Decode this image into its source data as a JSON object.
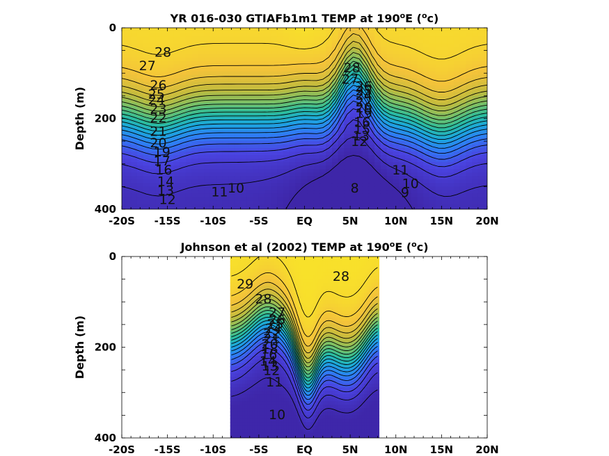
{
  "chart_data": [
    {
      "type": "heatmap",
      "title_pre": "YR 016-030 GTIAFb1m1 TEMP at 190",
      "title_sup1": "o",
      "title_mid": "E (",
      "title_sup2": "o",
      "title_post": "c)",
      "ylabel": "Depth (m)",
      "xlim": [
        -20,
        20
      ],
      "ylim": [
        0,
        400
      ],
      "y_reversed": true,
      "x_ticks": [
        -20,
        -15,
        -10,
        -5,
        0,
        5,
        10,
        15,
        20
      ],
      "x_tick_labels": [
        "-20S",
        "-15S",
        "-10S",
        "-5S",
        "EQ",
        "5N",
        "10N",
        "15N",
        "20N"
      ],
      "y_ticks": [
        0,
        200,
        400
      ],
      "y_tick_labels": [
        "0",
        "200",
        "400"
      ],
      "data_xrange": [
        -20,
        20
      ],
      "colormap": [
        "#3e26a8",
        "#4a43e0",
        "#2f7cf5",
        "#1ba7dc",
        "#2cbc9b",
        "#78bf66",
        "#c2bb3d",
        "#f4c33a",
        "#f9e926"
      ],
      "temp_range": [
        8,
        29.5
      ],
      "contour_levels": [
        8,
        9,
        10,
        11,
        12,
        13,
        14,
        15,
        16,
        17,
        18,
        19,
        20,
        21,
        22,
        23,
        24,
        25,
        26,
        27,
        28
      ],
      "contour_labels": [
        {
          "text": "28",
          "x": -15.5,
          "y": 55
        },
        {
          "text": "27",
          "x": -17.2,
          "y": 85
        },
        {
          "text": "26",
          "x": -16.0,
          "y": 128
        },
        {
          "text": "25",
          "x": -16.2,
          "y": 148
        },
        {
          "text": "24",
          "x": -16.2,
          "y": 160
        },
        {
          "text": "23",
          "x": -16.0,
          "y": 180
        },
        {
          "text": "22",
          "x": -16.0,
          "y": 200
        },
        {
          "text": "21",
          "x": -16.0,
          "y": 230
        },
        {
          "text": "20",
          "x": -16.0,
          "y": 255
        },
        {
          "text": "19",
          "x": -15.6,
          "y": 275
        },
        {
          "text": "17",
          "x": -15.6,
          "y": 295
        },
        {
          "text": "16",
          "x": -15.4,
          "y": 315
        },
        {
          "text": "14",
          "x": -15.2,
          "y": 340
        },
        {
          "text": "13",
          "x": -15.2,
          "y": 360
        },
        {
          "text": "12",
          "x": -15.0,
          "y": 380
        },
        {
          "text": "28",
          "x": 5.2,
          "y": 90
        },
        {
          "text": "27",
          "x": 5.0,
          "y": 115
        },
        {
          "text": "26",
          "x": 6.5,
          "y": 130
        },
        {
          "text": "25",
          "x": 6.5,
          "y": 140
        },
        {
          "text": "24",
          "x": 6.5,
          "y": 150
        },
        {
          "text": "22",
          "x": 6.5,
          "y": 165
        },
        {
          "text": "20",
          "x": 6.5,
          "y": 178
        },
        {
          "text": "19",
          "x": 6.5,
          "y": 190
        },
        {
          "text": "16",
          "x": 6.3,
          "y": 210
        },
        {
          "text": "15",
          "x": 6.3,
          "y": 225
        },
        {
          "text": "13",
          "x": 6.2,
          "y": 240
        },
        {
          "text": "12",
          "x": 6.0,
          "y": 252
        },
        {
          "text": "11",
          "x": 10.5,
          "y": 315
        },
        {
          "text": "10",
          "x": 11.6,
          "y": 345
        },
        {
          "text": "9",
          "x": 11.0,
          "y": 365
        },
        {
          "text": "11",
          "x": -9.3,
          "y": 363
        },
        {
          "text": "10",
          "x": -7.5,
          "y": 355
        },
        {
          "text": "8",
          "x": 5.5,
          "y": 355
        }
      ]
    },
    {
      "type": "heatmap",
      "title_pre": "Johnson et al (2002) TEMP at 190",
      "title_sup1": "o",
      "title_mid": "E (",
      "title_sup2": "o",
      "title_post": "c)",
      "ylabel": "Depth (m)",
      "xlim": [
        -20,
        20
      ],
      "ylim": [
        0,
        400
      ],
      "y_reversed": true,
      "x_ticks": [
        -20,
        -15,
        -10,
        -5,
        0,
        5,
        10,
        15,
        20
      ],
      "x_tick_labels": [
        "-20S",
        "-15S",
        "-10S",
        "-5S",
        "EQ",
        "5N",
        "10N",
        "15N",
        "20N"
      ],
      "y_ticks": [
        0,
        200,
        400
      ],
      "y_tick_labels": [
        "0",
        "200",
        "400"
      ],
      "data_xrange": [
        -8,
        8
      ],
      "colormap": [
        "#3e26a8",
        "#4a43e0",
        "#2f7cf5",
        "#1ba7dc",
        "#2cbc9b",
        "#78bf66",
        "#c2bb3d",
        "#f4c33a",
        "#f9e926"
      ],
      "temp_range": [
        9.5,
        30
      ],
      "contour_levels": [
        10,
        11,
        12,
        13,
        14,
        15,
        16,
        17,
        18,
        19,
        20,
        21,
        22,
        23,
        24,
        25,
        26,
        27,
        28,
        29
      ],
      "contour_labels": [
        {
          "text": "29",
          "x": -6.5,
          "y": 62
        },
        {
          "text": "28",
          "x": -4.5,
          "y": 95
        },
        {
          "text": "28",
          "x": 4.0,
          "y": 45
        },
        {
          "text": "27",
          "x": -3.0,
          "y": 125
        },
        {
          "text": "26",
          "x": -3.0,
          "y": 140
        },
        {
          "text": "25",
          "x": -3.2,
          "y": 150
        },
        {
          "text": "24",
          "x": -3.4,
          "y": 160
        },
        {
          "text": "22",
          "x": -3.6,
          "y": 172
        },
        {
          "text": "21",
          "x": -3.6,
          "y": 182
        },
        {
          "text": "20",
          "x": -3.8,
          "y": 195
        },
        {
          "text": "18",
          "x": -3.8,
          "y": 205
        },
        {
          "text": "16",
          "x": -3.9,
          "y": 218
        },
        {
          "text": "14",
          "x": -4.0,
          "y": 232
        },
        {
          "text": "13",
          "x": -3.8,
          "y": 243
        },
        {
          "text": "12",
          "x": -3.6,
          "y": 253
        },
        {
          "text": "11",
          "x": -3.3,
          "y": 278
        },
        {
          "text": "10",
          "x": -3.0,
          "y": 350
        }
      ]
    }
  ]
}
